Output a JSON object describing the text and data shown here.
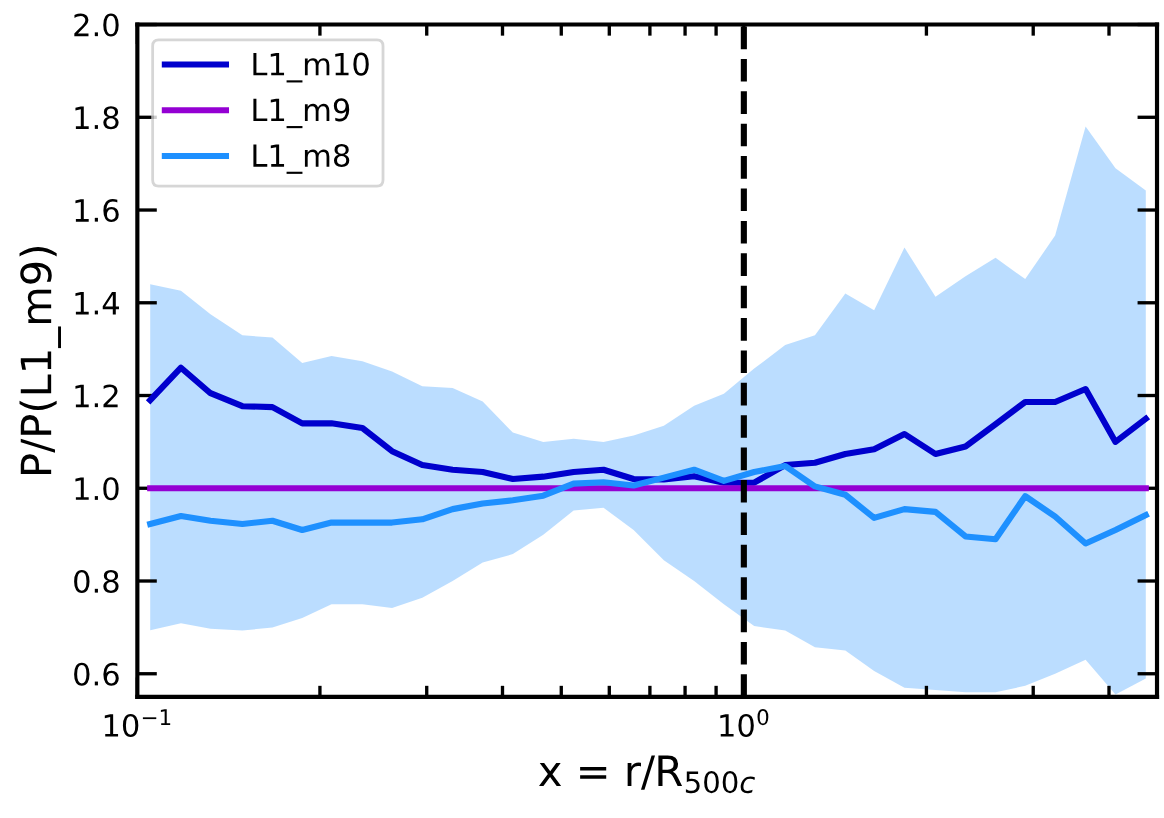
{
  "chart_data": {
    "type": "line",
    "xlabel": "x = r/R$_{500c}$",
    "ylabel": "P/P(L1_m9)",
    "log": "x",
    "xlim": [
      0.1,
      4.8
    ],
    "ylim": [
      0.55,
      2.0
    ],
    "xticks": [
      {
        "value": 0.1,
        "label": "10$^{−1}$"
      },
      {
        "value": 1,
        "label": "10$^{0}$"
      }
    ],
    "yticks": [
      {
        "value": 0.6,
        "label": "0.6"
      },
      {
        "value": 0.8,
        "label": "0.8"
      },
      {
        "value": 1.0,
        "label": "1.0"
      },
      {
        "value": 1.2,
        "label": "1.2"
      },
      {
        "value": 1.4,
        "label": "1.4"
      },
      {
        "value": 1.6,
        "label": "1.6"
      },
      {
        "value": 1.8,
        "label": "1.8"
      },
      {
        "value": 2.0,
        "label": "2.0"
      }
    ],
    "x": [
      0.105,
      0.118,
      0.132,
      0.149,
      0.167,
      0.187,
      0.209,
      0.235,
      0.263,
      0.295,
      0.331,
      0.371,
      0.416,
      0.467,
      0.524,
      0.587,
      0.658,
      0.738,
      0.828,
      0.927,
      1.04,
      1.17,
      1.31,
      1.47,
      1.64,
      1.84,
      2.07,
      2.32,
      2.6,
      2.91,
      3.26,
      3.66,
      4.1,
      4.6
    ],
    "legend": "top left",
    "grid": false,
    "line_style": "solid",
    "marker": "none",
    "ref_lines": [
      {
        "axis": "x",
        "value": 1,
        "color": "#000000",
        "line_style": "dashed"
      }
    ],
    "series": [
      {
        "name": "L1_m10",
        "color": "#0000cd",
        "values": [
          1.19,
          1.26,
          1.205,
          1.177,
          1.175,
          1.14,
          1.14,
          1.13,
          1.08,
          1.05,
          1.04,
          1.035,
          1.02,
          1.025,
          1.035,
          1.04,
          1.02,
          1.019,
          1.026,
          1.012,
          1.012,
          1.05,
          1.055,
          1.074,
          1.084,
          1.117,
          1.074,
          1.09,
          1.138,
          1.186,
          1.186,
          1.214,
          1.1,
          1.15
        ]
      },
      {
        "name": "L1_m9",
        "color": "#9400d3",
        "values": [
          1,
          1,
          1,
          1,
          1,
          1,
          1,
          1,
          1,
          1,
          1,
          1,
          1,
          1,
          1,
          1,
          1,
          1,
          1,
          1,
          1,
          1,
          1,
          1,
          1,
          1,
          1,
          1,
          1,
          1,
          1,
          1,
          1,
          1
        ]
      },
      {
        "name": "L1_m8",
        "color": "#1e90ff",
        "values": [
          0.923,
          0.94,
          0.93,
          0.923,
          0.93,
          0.91,
          0.926,
          0.926,
          0.926,
          0.933,
          0.955,
          0.967,
          0.974,
          0.984,
          1.01,
          1.013,
          1.006,
          1.023,
          1.04,
          1.016,
          1.035,
          1.048,
          1.004,
          0.986,
          0.936,
          0.955,
          0.949,
          0.896,
          0.89,
          0.983,
          0.939,
          0.881,
          0.91,
          0.942
        ],
        "lower": [
          0.694,
          0.709,
          0.697,
          0.693,
          0.7,
          0.72,
          0.75,
          0.75,
          0.742,
          0.764,
          0.8,
          0.84,
          0.858,
          0.9,
          0.952,
          0.958,
          0.91,
          0.845,
          0.8,
          0.75,
          0.703,
          0.693,
          0.657,
          0.65,
          0.606,
          0.57,
          0.565,
          0.56,
          0.56,
          0.574,
          0.6,
          0.63,
          0.555,
          0.59
        ],
        "upper": [
          1.44,
          1.426,
          1.375,
          1.33,
          1.325,
          1.27,
          1.285,
          1.274,
          1.252,
          1.22,
          1.216,
          1.187,
          1.12,
          1.1,
          1.107,
          1.1,
          1.114,
          1.135,
          1.178,
          1.204,
          1.258,
          1.309,
          1.33,
          1.42,
          1.384,
          1.519,
          1.413,
          1.457,
          1.497,
          1.451,
          1.545,
          1.78,
          1.69,
          1.642
        ]
      }
    ]
  }
}
